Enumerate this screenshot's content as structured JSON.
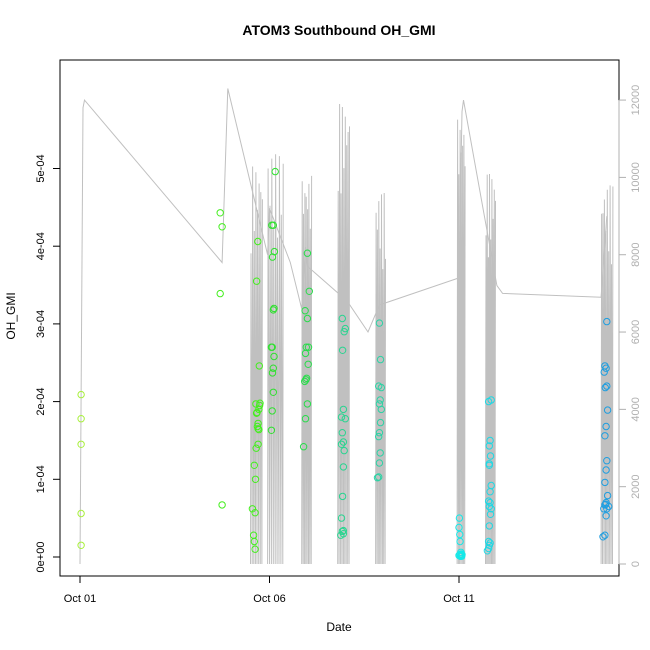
{
  "chart_data": {
    "type": "scatter",
    "title": "ATOM3 Southbound OH_GMI",
    "xlabel": "Date",
    "ylabel": "OH_GMI",
    "x_range_days": [
      0.0,
      15.0
    ],
    "x_ticks": [
      {
        "day": 0,
        "label": "Oct 01"
      },
      {
        "day": 5,
        "label": "Oct 06"
      },
      {
        "day": 10,
        "label": "Oct 11"
      }
    ],
    "y_range": [
      0,
      0.0005
    ],
    "y_ticks": [
      {
        "value": 0,
        "label": "0e+00"
      },
      {
        "value": 0.0001,
        "label": "1e-04"
      },
      {
        "value": 0.0002,
        "label": "2e-04"
      },
      {
        "value": 0.0003,
        "label": "3e-04"
      },
      {
        "value": 0.0004,
        "label": "4e-04"
      },
      {
        "value": 0.0005,
        "label": "5e-04"
      }
    ],
    "y2_range": [
      0,
      12500
    ],
    "y2_ticks": [
      {
        "value": 0,
        "label": "0"
      },
      {
        "value": 2000,
        "label": "2000"
      },
      {
        "value": 4000,
        "label": "4000"
      },
      {
        "value": 6000,
        "label": "6000"
      },
      {
        "value": 8000,
        "label": "8000"
      },
      {
        "value": 10000,
        "label": "10000"
      },
      {
        "value": 12000,
        "label": "12000"
      }
    ],
    "grid": false,
    "legend": "none",
    "colors": {
      "oct01": "#a8f03c",
      "oct05": "#44ee1e",
      "oct06": "#2fe02f",
      "oct07": "#28dc4a",
      "oct08": "#2ad490",
      "oct09": "#2cd2a4",
      "oct11": "#16e8e8",
      "oct12": "#1ed8e4",
      "oct15": "#1e9ee0",
      "altitude_line": "#c0c0c0",
      "axis": "#000000",
      "right_axis": "#b0b0b0"
    },
    "points": [
      {
        "group": "oct01",
        "x": [
          0.03,
          0.03,
          0.03,
          0.03,
          0.03
        ],
        "y": [
          1.5e-05,
          5.6e-05,
          0.000145,
          0.000178,
          0.000209
        ]
      },
      {
        "group": "oct05",
        "x": [
          3.7,
          3.75,
          3.7,
          3.75,
          4.55,
          4.58,
          4.62,
          4.6,
          4.63,
          4.6,
          4.65,
          4.7,
          4.72,
          4.68,
          4.7,
          4.66,
          4.72,
          4.74,
          4.75,
          4.73,
          4.66,
          4.69,
          4.62,
          4.64,
          4.67,
          4.7
        ],
        "y": [
          0.000339,
          0.000425,
          0.000443,
          6.7e-05,
          6.2e-05,
          2.8e-05,
          1e-05,
          2e-05,
          0.0001,
          0.000118,
          0.00014,
          0.000145,
          0.000164,
          0.000168,
          0.000172,
          0.000185,
          0.00019,
          0.000195,
          0.000198,
          0.000246,
          0.000355,
          0.000406,
          5.7e-05,
          0.000197,
          0.000186,
          0.000165
        ]
      },
      {
        "group": "oct06",
        "x": [
          5.05,
          5.07,
          5.1,
          5.08,
          5.1,
          5.05,
          5.07,
          5.12,
          5.1,
          5.08,
          5.13,
          5.06,
          5.1,
          5.15,
          5.12
        ],
        "y": [
          0.000163,
          0.000188,
          0.000212,
          0.000237,
          0.000243,
          0.00027,
          0.00027,
          0.00032,
          0.000318,
          0.000386,
          0.000393,
          0.000427,
          0.000427,
          0.000496,
          0.000258
        ]
      },
      {
        "group": "oct07",
        "x": [
          5.9,
          5.95,
          6.0,
          5.93,
          5.96,
          5.98,
          6.02,
          5.95,
          5.97,
          6.03,
          6.0,
          5.94,
          6.05,
          6.0
        ],
        "y": [
          0.000142,
          0.000178,
          0.000197,
          0.000226,
          0.000228,
          0.00023,
          0.000248,
          0.000262,
          0.00027,
          0.00027,
          0.000307,
          0.000317,
          0.000342,
          0.000391
        ]
      },
      {
        "group": "oct08",
        "x": [
          6.88,
          6.92,
          6.95,
          6.9,
          6.93,
          6.95,
          6.97,
          6.9,
          6.95,
          6.92,
          7.0,
          6.9,
          6.95,
          6.93,
          6.97,
          7.0,
          6.92,
          6.95
        ],
        "y": [
          2.8e-05,
          3.3e-05,
          3.4e-05,
          5e-05,
          7.8e-05,
          0.000116,
          0.000137,
          0.000145,
          0.000148,
          0.00016,
          0.000178,
          0.00018,
          0.00019,
          0.000266,
          0.00029,
          0.000294,
          0.000307,
          3e-05
        ]
      },
      {
        "group": "oct09",
        "x": [
          7.85,
          7.88,
          7.9,
          7.92,
          7.88,
          7.9,
          7.93,
          7.95,
          7.9,
          7.92,
          7.95,
          7.88,
          7.93,
          7.9
        ],
        "y": [
          0.000102,
          0.000103,
          0.000121,
          0.000134,
          0.000155,
          0.00016,
          0.000173,
          0.00019,
          0.000197,
          0.000202,
          0.000218,
          0.00022,
          0.000254,
          0.000301
        ]
      },
      {
        "group": "oct11",
        "x": [
          10.0,
          10.02,
          10.04,
          10.05,
          10.06,
          10.07,
          10.08,
          10.05,
          10.03,
          10.02,
          10.0,
          10.01,
          10.04,
          10.06
        ],
        "y": [
          2e-06,
          3e-06,
          1e-06,
          2e-06,
          4e-06,
          1e-06,
          3e-06,
          6e-06,
          2e-05,
          2.9e-05,
          3.8e-05,
          5e-05,
          1e-06,
          2e-06
        ]
      },
      {
        "group": "oct12",
        "x": [
          10.75,
          10.78,
          10.8,
          10.82,
          10.78,
          10.8,
          10.83,
          10.85,
          10.8,
          10.82,
          10.78,
          10.82,
          10.85,
          10.8,
          10.83,
          10.8,
          10.82,
          10.78,
          10.85,
          10.8
        ],
        "y": [
          8e-06,
          1.1e-05,
          1.5e-05,
          1.8e-05,
          2e-05,
          4e-05,
          5.5e-05,
          6.2e-05,
          6.5e-05,
          7e-05,
          7.2e-05,
          8.4e-05,
          9.2e-05,
          0.00012,
          0.00013,
          0.000143,
          0.00015,
          0.0002,
          0.000202,
          0.000118
        ]
      },
      {
        "group": "oct15",
        "x": [
          13.8,
          13.85,
          13.88,
          13.82,
          13.9,
          13.85,
          13.88,
          13.92,
          13.85,
          13.88,
          13.9,
          13.85,
          13.88,
          13.92,
          13.86,
          13.9,
          13.83,
          13.88,
          13.85,
          13.9,
          13.87,
          13.95
        ],
        "y": [
          2.6e-05,
          2.8e-05,
          5.3e-05,
          6.2e-05,
          6.2e-05,
          6.7e-05,
          7e-05,
          7.9e-05,
          9.6e-05,
          0.000112,
          0.000124,
          0.000156,
          0.000168,
          0.000189,
          0.000218,
          0.00022,
          0.000238,
          0.000243,
          0.000246,
          0.000303,
          6.8e-05,
          6.5e-05
        ]
      }
    ],
    "altitude_track": [
      [
        0.0,
        0
      ],
      [
        0.08,
        11800
      ],
      [
        0.12,
        12000
      ],
      [
        3.75,
        7800
      ],
      [
        3.9,
        12300
      ],
      [
        4.95,
        8000
      ],
      [
        5.0,
        9200
      ],
      [
        5.55,
        7800
      ],
      [
        5.85,
        6600
      ],
      [
        5.95,
        8200
      ],
      [
        6.0,
        7700
      ],
      [
        7.05,
        6800
      ],
      [
        7.6,
        6000
      ],
      [
        7.9,
        6700
      ],
      [
        10.0,
        7400
      ],
      [
        10.08,
        11700
      ],
      [
        10.12,
        12000
      ],
      [
        11.0,
        7200
      ],
      [
        11.15,
        7000
      ],
      [
        13.75,
        6900
      ],
      [
        13.9,
        9000
      ]
    ],
    "altitude_bursts": [
      {
        "x0": 4.5,
        "x1": 4.8,
        "max": 10300,
        "count": 7
      },
      {
        "x0": 4.95,
        "x1": 5.35,
        "max": 10600,
        "count": 8
      },
      {
        "x0": 5.85,
        "x1": 6.1,
        "max": 10100,
        "count": 7
      },
      {
        "x0": 6.8,
        "x1": 7.1,
        "max": 11900,
        "count": 8
      },
      {
        "x0": 7.8,
        "x1": 8.05,
        "max": 9600,
        "count": 7
      },
      {
        "x0": 9.95,
        "x1": 10.15,
        "max": 11600,
        "count": 6
      },
      {
        "x0": 10.7,
        "x1": 10.95,
        "max": 10100,
        "count": 8
      },
      {
        "x0": 13.75,
        "x1": 14.05,
        "max": 9800,
        "count": 8
      }
    ]
  }
}
